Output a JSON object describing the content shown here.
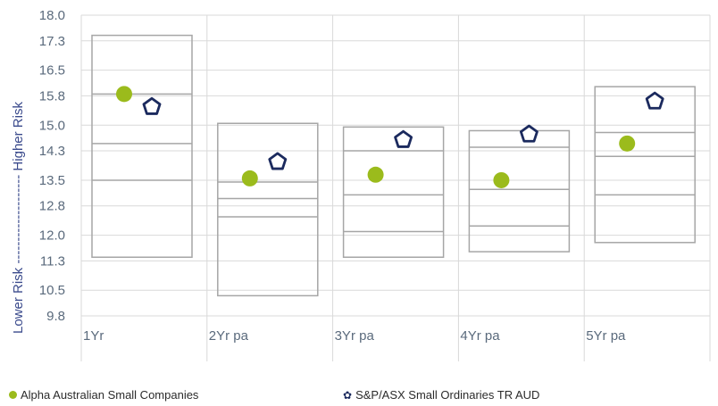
{
  "chart_data": {
    "type": "range-box-scatter",
    "y_axis": {
      "ticks": [
        "18.0",
        "17.3",
        "16.5",
        "15.8",
        "15.0",
        "14.3",
        "13.5",
        "12.8",
        "12.0",
        "11.3",
        "10.5",
        "9.8"
      ],
      "range": [
        9.8,
        18.0
      ],
      "label_low": "Lower Risk",
      "label_high": "Higher Risk",
      "label_connector": "--------------------"
    },
    "categories": [
      "1Yr",
      "2Yr pa",
      "3Yr pa",
      "4Yr pa",
      "5Yr pa"
    ],
    "ranges": [
      {
        "min": 11.4,
        "q1": 13.5,
        "median": 14.5,
        "q3": 15.85,
        "max": 17.45
      },
      {
        "min": 10.35,
        "q1": 12.5,
        "median": 13.0,
        "q3": 13.45,
        "max": 15.05
      },
      {
        "min": 11.4,
        "q1": 12.1,
        "median": 13.1,
        "q3": 14.3,
        "max": 14.95
      },
      {
        "min": 11.55,
        "q1": 12.25,
        "median": 13.25,
        "q3": 14.4,
        "max": 14.85
      },
      {
        "min": 11.8,
        "q1": 13.1,
        "median": 14.15,
        "q3": 14.8,
        "max": 16.05
      }
    ],
    "series": [
      {
        "name": "Alpha Australian Small Companies",
        "marker": "circle",
        "color": "#9bbb1c",
        "values": [
          15.85,
          13.55,
          13.65,
          13.5,
          14.5
        ]
      },
      {
        "name": "S&P/ASX Small Ordinaries TR AUD",
        "marker": "pentagon",
        "color": "#1b2a5e",
        "values": [
          15.5,
          14.0,
          14.6,
          14.75,
          15.65
        ]
      }
    ],
    "legend_position": "bottom",
    "grid": true
  },
  "legend": {
    "series1_label": "Alpha Australian Small Companies",
    "series2_label": "S&P/ASX Small Ordinaries TR AUD",
    "series2_icon": "✿"
  },
  "colors": {
    "grid": "#d9d9d9",
    "box_stroke": "#a6a6a6",
    "fund": "#9bbb1c",
    "benchmark": "#1b2a5e"
  }
}
